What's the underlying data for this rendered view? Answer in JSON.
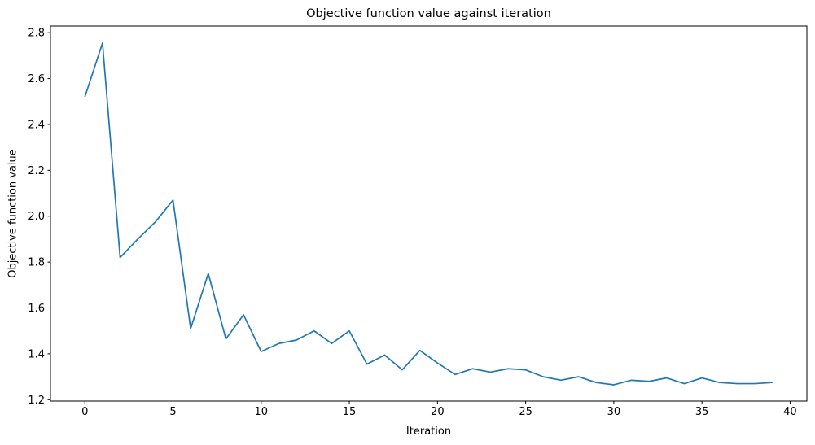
{
  "chart_data": {
    "type": "line",
    "title": "Objective function value against iteration",
    "xlabel": "Iteration",
    "ylabel": "Objective function value",
    "x": [
      0,
      1,
      2,
      3,
      4,
      5,
      6,
      7,
      8,
      9,
      10,
      11,
      12,
      13,
      14,
      15,
      16,
      17,
      18,
      19,
      20,
      21,
      22,
      23,
      24,
      25,
      26,
      27,
      28,
      29,
      30,
      31,
      32,
      33,
      34,
      35,
      36,
      37,
      38,
      39
    ],
    "values": [
      2.52,
      2.755,
      1.82,
      1.9,
      1.975,
      2.07,
      1.51,
      1.75,
      1.465,
      1.57,
      1.41,
      1.445,
      1.46,
      1.5,
      1.445,
      1.5,
      1.355,
      1.395,
      1.33,
      1.415,
      1.36,
      1.31,
      1.335,
      1.32,
      1.335,
      1.33,
      1.3,
      1.285,
      1.3,
      1.275,
      1.265,
      1.285,
      1.28,
      1.295,
      1.27,
      1.295,
      1.275,
      1.27,
      1.27,
      1.275
    ],
    "line_color": "#1f77b4",
    "text_color": "#000000",
    "spine_color": "#000000",
    "xlim": [
      -1.95,
      40.95
    ],
    "ylim": [
      1.194,
      2.829
    ],
    "xtick_values": [
      0,
      5,
      10,
      15,
      20,
      25,
      30,
      35,
      40
    ],
    "xtick_labels": [
      "0",
      "5",
      "10",
      "15",
      "20",
      "25",
      "30",
      "35",
      "40"
    ],
    "ytick_values": [
      1.2,
      1.4,
      1.6,
      1.8,
      2.0,
      2.2,
      2.4,
      2.6,
      2.8
    ],
    "ytick_labels": [
      "1.2",
      "1.4",
      "1.6",
      "1.8",
      "2.0",
      "2.2",
      "2.4",
      "2.6",
      "2.8"
    ],
    "grid": false,
    "legend": null
  }
}
